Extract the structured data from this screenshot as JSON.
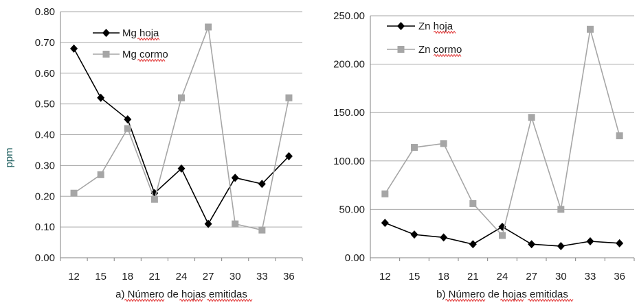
{
  "colors": {
    "hoja": "#000000",
    "cormo": "#a6a6a6",
    "grid": "#a6a6a6",
    "ylabel": "#1f5f5f"
  },
  "chart_data": [
    {
      "type": "line",
      "categories": [
        "12",
        "15",
        "18",
        "21",
        "24",
        "27",
        "30",
        "33",
        "36"
      ],
      "ylim": [
        0,
        0.8
      ],
      "yticks": [
        "0.00",
        "0.10",
        "0.20",
        "0.30",
        "0.40",
        "0.50",
        "0.60",
        "0.70",
        "0.80"
      ],
      "ylabel": "ppm",
      "xlabel_prefix": "a)",
      "xlabel": "Número de hojas emitidas",
      "grid": true,
      "legend": "top-left",
      "series": [
        {
          "name": "Mg hoja",
          "marker": "diamond",
          "color": "#000000",
          "values": [
            0.68,
            0.52,
            0.45,
            0.21,
            0.29,
            0.11,
            0.26,
            0.24,
            0.33
          ]
        },
        {
          "name": "Mg cormo",
          "marker": "square",
          "color": "#a6a6a6",
          "values": [
            0.21,
            0.27,
            0.42,
            0.19,
            0.52,
            0.75,
            0.11,
            0.09,
            0.52
          ]
        }
      ]
    },
    {
      "type": "line",
      "categories": [
        "12",
        "15",
        "18",
        "21",
        "24",
        "27",
        "30",
        "33",
        "36"
      ],
      "ylim": [
        0,
        250
      ],
      "yticks": [
        "0.00",
        "50.00",
        "100.00",
        "150.00",
        "200.00",
        "250.00"
      ],
      "ylabel": "",
      "xlabel_prefix": "b)",
      "xlabel": "Número de hojas emitidas",
      "grid": true,
      "legend": "top-left",
      "series": [
        {
          "name": "Zn hoja",
          "marker": "diamond",
          "color": "#000000",
          "values": [
            36,
            24,
            21,
            14,
            32,
            14,
            12,
            17,
            15
          ]
        },
        {
          "name": "Zn cormo",
          "marker": "square",
          "color": "#a6a6a6",
          "values": [
            66,
            114,
            118,
            56,
            23,
            145,
            50,
            236,
            126
          ]
        }
      ]
    }
  ]
}
